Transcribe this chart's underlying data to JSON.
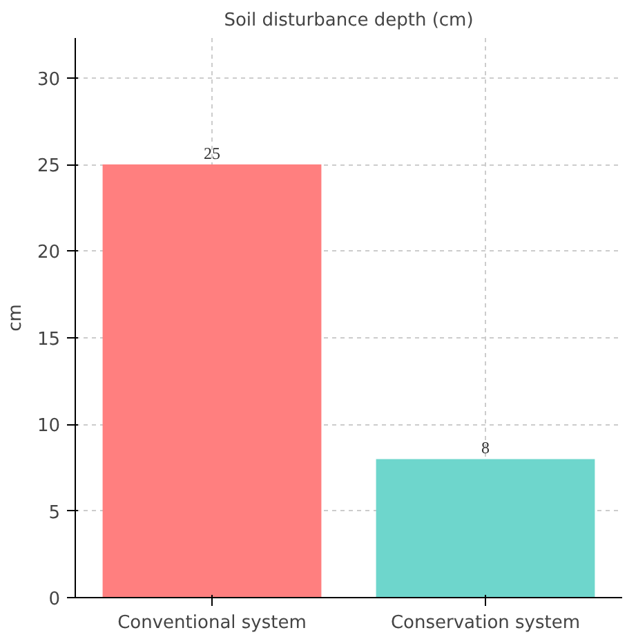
{
  "chart_data": {
    "type": "bar",
    "title": "Soil disturbance depth (cm)",
    "ylabel": "cm",
    "categories": [
      "Conventional system",
      "Conservation system"
    ],
    "values": [
      25,
      8
    ],
    "colors": [
      "#ff7f7f",
      "#6ed6cc"
    ],
    "ylim": [
      0,
      32.3
    ],
    "yticks": [
      0,
      5,
      10,
      15,
      20,
      25,
      30
    ],
    "grid": true,
    "data_labels": true
  }
}
